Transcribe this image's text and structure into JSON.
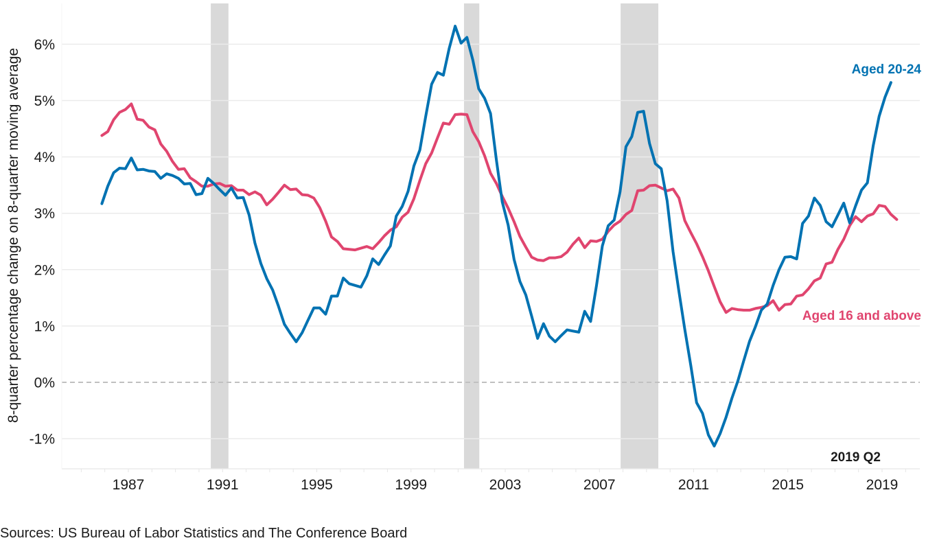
{
  "chart_data": {
    "type": "line",
    "title": "",
    "xlabel": "",
    "ylabel": "8-quarter percentage change on 8-quarter moving average",
    "x_ticks": [
      1987,
      1991,
      1995,
      1999,
      2003,
      2007,
      2011,
      2015,
      2019
    ],
    "x_tick_labels": [
      "1987",
      "1991",
      "1995",
      "1999",
      "2003",
      "2007",
      "2011",
      "2015",
      "2019"
    ],
    "xlim": [
      1983.3,
      2020.8
    ],
    "y_ticks": [
      -1,
      0,
      1,
      2,
      3,
      4,
      5,
      6
    ],
    "y_tick_labels": [
      "-1%",
      "0%",
      "1%",
      "2%",
      "3%",
      "4%",
      "5%",
      "6%"
    ],
    "ylim": [
      -1.55,
      6.7
    ],
    "grid": "horizontal",
    "zero_line": "dashed",
    "x_start": 1985.875,
    "x_step": 0.25,
    "recessions": [
      {
        "start": 1990.5,
        "end": 1991.25
      },
      {
        "start": 2001.25,
        "end": 2001.9
      },
      {
        "start": 2007.9,
        "end": 2009.5
      }
    ],
    "series": [
      {
        "name": "Aged 20-24",
        "color": "#0072b2",
        "label": "Aged 20-24",
        "values": [
          3.17,
          3.48,
          3.72,
          3.8,
          3.79,
          3.98,
          3.77,
          3.78,
          3.75,
          3.74,
          3.62,
          3.7,
          3.67,
          3.62,
          3.52,
          3.53,
          3.33,
          3.35,
          3.62,
          3.53,
          3.42,
          3.32,
          3.45,
          3.27,
          3.28,
          2.97,
          2.47,
          2.11,
          1.84,
          1.64,
          1.35,
          1.03,
          0.87,
          0.72,
          0.88,
          1.1,
          1.32,
          1.32,
          1.21,
          1.53,
          1.53,
          1.85,
          1.75,
          1.72,
          1.69,
          1.89,
          2.19,
          2.09,
          2.26,
          2.42,
          2.95,
          3.12,
          3.39,
          3.84,
          4.12,
          4.72,
          5.29,
          5.5,
          5.45,
          5.93,
          6.32,
          6.02,
          6.12,
          5.72,
          5.21,
          5.04,
          4.77,
          3.95,
          3.2,
          2.79,
          2.18,
          1.79,
          1.55,
          1.17,
          0.78,
          1.04,
          0.82,
          0.72,
          0.83,
          0.93,
          0.91,
          0.89,
          1.26,
          1.08,
          1.72,
          2.42,
          2.78,
          2.88,
          3.38,
          4.18,
          4.36,
          4.79,
          4.81,
          4.24,
          3.88,
          3.79,
          3.22,
          2.32,
          1.61,
          0.94,
          0.31,
          -0.36,
          -0.55,
          -0.93,
          -1.13,
          -0.91,
          -0.62,
          -0.28,
          0.02,
          0.38,
          0.73,
          0.99,
          1.28,
          1.39,
          1.72,
          2.0,
          2.22,
          2.23,
          2.19,
          2.82,
          2.95,
          3.27,
          3.14,
          2.85,
          2.76,
          2.97,
          3.18,
          2.83,
          3.13,
          3.41,
          3.54,
          4.2,
          4.72,
          5.06,
          5.32
        ]
      },
      {
        "name": "Aged 16 and above",
        "color": "#e0456f",
        "label": "Aged 16 and above",
        "values": [
          4.38,
          4.45,
          4.66,
          4.79,
          4.84,
          4.94,
          4.67,
          4.65,
          4.53,
          4.48,
          4.23,
          4.1,
          3.92,
          3.78,
          3.79,
          3.63,
          3.56,
          3.48,
          3.48,
          3.52,
          3.53,
          3.48,
          3.49,
          3.41,
          3.41,
          3.33,
          3.38,
          3.32,
          3.15,
          3.25,
          3.37,
          3.5,
          3.42,
          3.43,
          3.33,
          3.32,
          3.27,
          3.1,
          2.86,
          2.58,
          2.5,
          2.37,
          2.36,
          2.35,
          2.38,
          2.41,
          2.37,
          2.48,
          2.6,
          2.7,
          2.76,
          2.93,
          3.02,
          3.26,
          3.58,
          3.88,
          4.07,
          4.34,
          4.6,
          4.58,
          4.75,
          4.76,
          4.75,
          4.45,
          4.27,
          4.02,
          3.71,
          3.53,
          3.3,
          3.09,
          2.85,
          2.59,
          2.4,
          2.22,
          2.17,
          2.16,
          2.21,
          2.21,
          2.23,
          2.31,
          2.45,
          2.56,
          2.39,
          2.51,
          2.5,
          2.54,
          2.68,
          2.79,
          2.86,
          2.98,
          3.05,
          3.4,
          3.41,
          3.49,
          3.5,
          3.45,
          3.4,
          3.43,
          3.27,
          2.87,
          2.66,
          2.46,
          2.23,
          1.98,
          1.7,
          1.43,
          1.24,
          1.31,
          1.29,
          1.28,
          1.28,
          1.31,
          1.33,
          1.36,
          1.45,
          1.28,
          1.38,
          1.39,
          1.53,
          1.55,
          1.66,
          1.8,
          1.85,
          2.1,
          2.13,
          2.36,
          2.54,
          2.78,
          2.94,
          2.85,
          2.95,
          2.99,
          3.14,
          3.12,
          2.98,
          2.89
        ]
      }
    ],
    "annotations": [
      {
        "text": "Aged 20-24",
        "series": "Aged 20-24"
      },
      {
        "text": "Aged 16 and above",
        "series": "Aged 16 and above"
      },
      {
        "text": "2019 Q2",
        "color": "#1a1a1a"
      }
    ]
  },
  "footer": {
    "source": "Sources: US Bureau of Labor Statistics and The Conference Board"
  },
  "colors": {
    "recession_band": "#d9d9d9",
    "gridline": "#ebebeb",
    "zero_line": "#c0c0c0"
  }
}
